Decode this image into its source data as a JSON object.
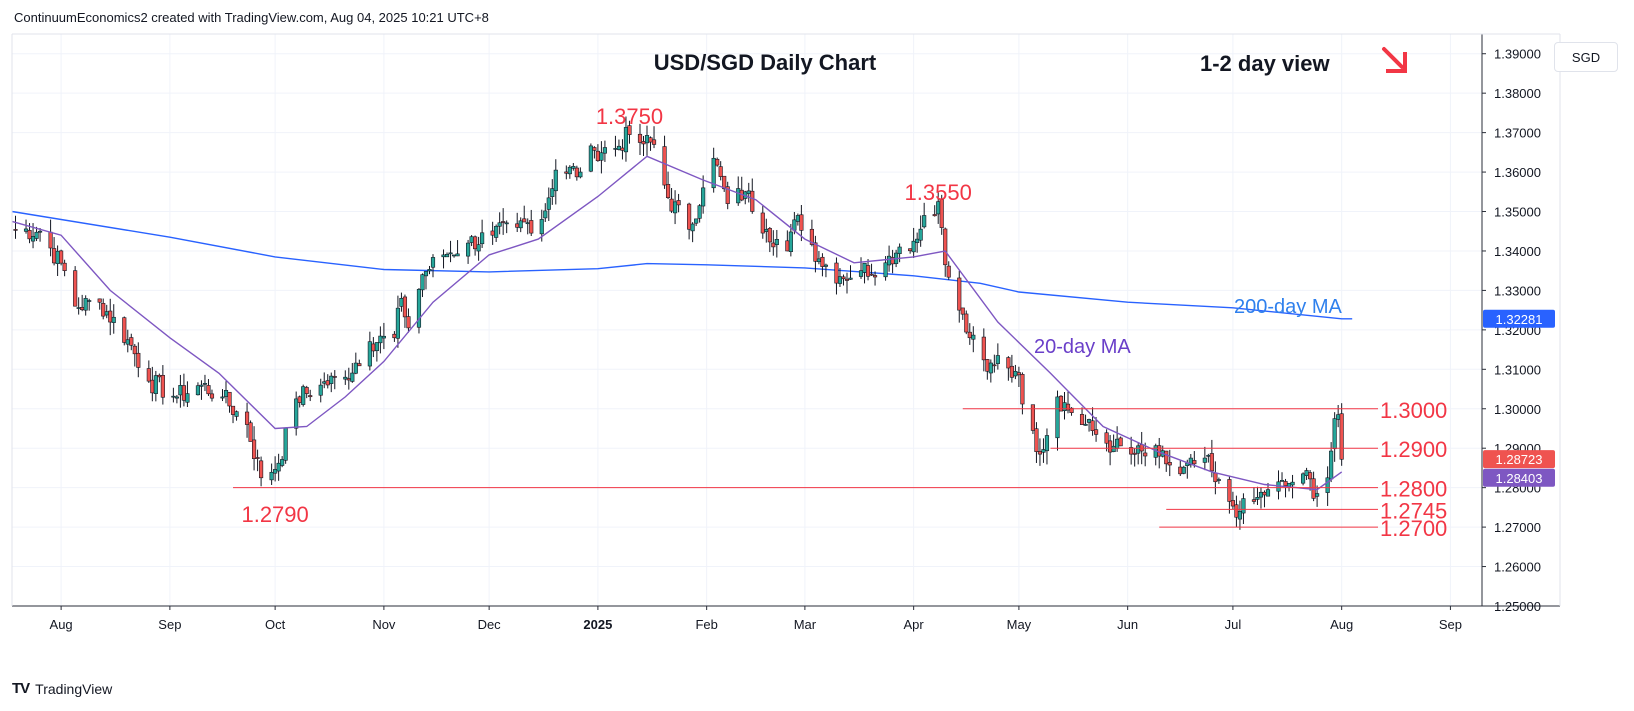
{
  "header": {
    "credit": "ContinuumEconomics2 created with TradingView.com, Aug 04, 2025 10:21 UTC+8"
  },
  "branding": {
    "logo_text": "TradingView",
    "logo_mark": "TV"
  },
  "currency_label": "SGD",
  "colors": {
    "up": "#26a69a",
    "down": "#ef5350",
    "ma20": "#7e57c2",
    "ma200": "#2962ff",
    "annotation": "#f23645",
    "ma200_label": "#2f80ed",
    "ma20_label": "#6a3fc9"
  },
  "chart_data": {
    "type": "candlestick",
    "title": "USD/SGD Daily Chart",
    "subtitle": "1-2 day view",
    "view_direction_icon": "arrow-down-right-icon",
    "ylim": [
      1.25,
      1.395
    ],
    "yticks": [
      1.25,
      1.26,
      1.27,
      1.28,
      1.29,
      1.3,
      1.31,
      1.32,
      1.33,
      1.34,
      1.35,
      1.36,
      1.37,
      1.38,
      1.39
    ],
    "ytick_labels": [
      "1.25000",
      "1.26000",
      "1.27000",
      "1.28000",
      "1.29000",
      "1.30000",
      "1.31000",
      "1.32000",
      "1.33000",
      "1.34000",
      "1.35000",
      "1.36000",
      "1.37000",
      "1.38000",
      "1.39000"
    ],
    "x_start": "2024-07-18",
    "x_end": "2025-09-10",
    "xticks": [
      {
        "date": "2024-08-01",
        "label": "Aug",
        "bold": false
      },
      {
        "date": "2024-09-01",
        "label": "Sep",
        "bold": false
      },
      {
        "date": "2024-10-01",
        "label": "Oct",
        "bold": false
      },
      {
        "date": "2024-11-01",
        "label": "Nov",
        "bold": false
      },
      {
        "date": "2024-12-01",
        "label": "Dec",
        "bold": false
      },
      {
        "date": "2025-01-01",
        "label": "2025",
        "bold": true
      },
      {
        "date": "2025-02-01",
        "label": "Feb",
        "bold": false
      },
      {
        "date": "2025-03-01",
        "label": "Mar",
        "bold": false
      },
      {
        "date": "2025-04-01",
        "label": "Apr",
        "bold": false
      },
      {
        "date": "2025-05-01",
        "label": "May",
        "bold": false
      },
      {
        "date": "2025-06-01",
        "label": "Jun",
        "bold": false
      },
      {
        "date": "2025-07-01",
        "label": "Jul",
        "bold": false
      },
      {
        "date": "2025-08-01",
        "label": "Aug",
        "bold": false
      },
      {
        "date": "2025-09-01",
        "label": "Sep",
        "bold": false
      }
    ],
    "price_anchors": [
      [
        "2024-07-18",
        1.3455
      ],
      [
        "2024-07-26",
        1.345
      ],
      [
        "2024-08-02",
        1.335
      ],
      [
        "2024-08-05",
        1.326
      ],
      [
        "2024-08-12",
        1.327
      ],
      [
        "2024-08-20",
        1.3175
      ],
      [
        "2024-08-26",
        1.307
      ],
      [
        "2024-09-03",
        1.303
      ],
      [
        "2024-09-10",
        1.306
      ],
      [
        "2024-09-16",
        1.303
      ],
      [
        "2024-09-23",
        1.296
      ],
      [
        "2024-09-27",
        1.2825
      ],
      [
        "2024-10-02",
        1.2862
      ],
      [
        "2024-10-07",
        1.3025
      ],
      [
        "2024-10-14",
        1.306
      ],
      [
        "2024-10-21",
        1.308
      ],
      [
        "2024-10-28",
        1.317
      ],
      [
        "2024-11-04",
        1.318
      ],
      [
        "2024-11-06",
        1.328
      ],
      [
        "2024-11-08",
        1.3205
      ],
      [
        "2024-11-12",
        1.334
      ],
      [
        "2024-11-18",
        1.339
      ],
      [
        "2024-11-25",
        1.342
      ],
      [
        "2024-12-02",
        1.344
      ],
      [
        "2024-12-09",
        1.346
      ],
      [
        "2024-12-16",
        1.348
      ],
      [
        "2024-12-20",
        1.3605
      ],
      [
        "2024-12-27",
        1.36
      ],
      [
        "2024-12-31",
        1.3655
      ],
      [
        "2025-01-06",
        1.366
      ],
      [
        "2025-01-10",
        1.3695
      ],
      [
        "2025-01-13",
        1.3675
      ],
      [
        "2025-01-17",
        1.367
      ],
      [
        "2025-01-21",
        1.3535
      ],
      [
        "2025-01-27",
        1.3455
      ],
      [
        "2025-01-31",
        1.356
      ],
      [
        "2025-02-03",
        1.3635
      ],
      [
        "2025-02-07",
        1.352
      ],
      [
        "2025-02-12",
        1.355
      ],
      [
        "2025-02-18",
        1.3455
      ],
      [
        "2025-02-24",
        1.34
      ],
      [
        "2025-02-27",
        1.349
      ],
      [
        "2025-03-05",
        1.338
      ],
      [
        "2025-03-11",
        1.3335
      ],
      [
        "2025-03-17",
        1.335
      ],
      [
        "2025-03-24",
        1.337
      ],
      [
        "2025-03-28",
        1.341
      ],
      [
        "2025-04-02",
        1.343
      ],
      [
        "2025-04-04",
        1.349
      ],
      [
        "2025-04-08",
        1.3525
      ],
      [
        "2025-04-10",
        1.3365
      ],
      [
        "2025-04-14",
        1.325
      ],
      [
        "2025-04-17",
        1.318
      ],
      [
        "2025-04-22",
        1.3095
      ],
      [
        "2025-04-25",
        1.3135
      ],
      [
        "2025-04-30",
        1.3095
      ],
      [
        "2025-05-05",
        1.2945
      ],
      [
        "2025-05-07",
        1.2885
      ],
      [
        "2025-05-12",
        1.303
      ],
      [
        "2025-05-16",
        1.299
      ],
      [
        "2025-05-23",
        1.2935
      ],
      [
        "2025-05-28",
        1.2905
      ],
      [
        "2025-06-02",
        1.2885
      ],
      [
        "2025-06-10",
        1.288
      ],
      [
        "2025-06-16",
        1.2835
      ],
      [
        "2025-06-23",
        1.2875
      ],
      [
        "2025-06-26",
        1.2815
      ],
      [
        "2025-06-30",
        1.2765
      ],
      [
        "2025-07-03",
        1.274
      ],
      [
        "2025-07-07",
        1.2765
      ],
      [
        "2025-07-11",
        1.2795
      ],
      [
        "2025-07-16",
        1.2805
      ],
      [
        "2025-07-21",
        1.2835
      ],
      [
        "2025-07-25",
        1.2785
      ],
      [
        "2025-07-28",
        1.2825
      ],
      [
        "2025-07-30",
        1.2975
      ],
      [
        "2025-07-31",
        1.2985
      ],
      [
        "2025-08-01",
        1.2872
      ]
    ],
    "series": [
      {
        "name": "200-day MA",
        "values": [
          [
            "2024-07-18",
            1.35
          ],
          [
            "2024-09-01",
            1.3435
          ],
          [
            "2024-10-01",
            1.3385
          ],
          [
            "2024-11-01",
            1.3353
          ],
          [
            "2024-12-01",
            1.3347
          ],
          [
            "2025-01-01",
            1.3355
          ],
          [
            "2025-01-15",
            1.3368
          ],
          [
            "2025-02-01",
            1.3365
          ],
          [
            "2025-03-01",
            1.3357
          ],
          [
            "2025-03-20",
            1.3345
          ],
          [
            "2025-04-01",
            1.3337
          ],
          [
            "2025-04-20",
            1.3318
          ],
          [
            "2025-05-01",
            1.3296
          ],
          [
            "2025-06-01",
            1.327
          ],
          [
            "2025-07-01",
            1.3256
          ],
          [
            "2025-08-01",
            1.3228
          ],
          [
            "2025-08-04",
            1.3228
          ]
        ]
      },
      {
        "name": "20-day MA",
        "values": [
          [
            "2024-07-18",
            1.3475
          ],
          [
            "2024-08-01",
            1.344
          ],
          [
            "2024-08-15",
            1.33
          ],
          [
            "2024-09-01",
            1.318
          ],
          [
            "2024-09-15",
            1.309
          ],
          [
            "2024-10-01",
            1.295
          ],
          [
            "2024-10-10",
            1.2955
          ],
          [
            "2024-10-21",
            1.303
          ],
          [
            "2024-11-01",
            1.312
          ],
          [
            "2024-11-15",
            1.327
          ],
          [
            "2024-12-01",
            1.339
          ],
          [
            "2024-12-15",
            1.343
          ],
          [
            "2025-01-01",
            1.3538
          ],
          [
            "2025-01-15",
            1.364
          ],
          [
            "2025-01-31",
            1.358
          ],
          [
            "2025-02-15",
            1.353
          ],
          [
            "2025-03-01",
            1.343
          ],
          [
            "2025-03-15",
            1.337
          ],
          [
            "2025-04-01",
            1.3385
          ],
          [
            "2025-04-10",
            1.34
          ],
          [
            "2025-04-25",
            1.322
          ],
          [
            "2025-05-10",
            1.309
          ],
          [
            "2025-05-25",
            1.2955
          ],
          [
            "2025-06-10",
            1.289
          ],
          [
            "2025-06-25",
            1.284
          ],
          [
            "2025-07-10",
            1.2808
          ],
          [
            "2025-07-25",
            1.2795
          ],
          [
            "2025-08-01",
            1.284
          ]
        ]
      }
    ],
    "reference_levels": [
      {
        "label": "1.3000",
        "value": 1.3,
        "x_from": "2025-04-15"
      },
      {
        "label": "1.2900",
        "value": 1.29,
        "x_from": "2025-05-10"
      },
      {
        "label": "1.2800",
        "value": 1.28,
        "x_from": "2024-09-19"
      },
      {
        "label": "1.2745",
        "value": 1.2745,
        "x_from": "2025-06-12"
      },
      {
        "label": "1.2700",
        "value": 1.27,
        "x_from": "2025-06-10"
      }
    ],
    "peak_annotations": [
      {
        "label": "1.3750",
        "date": "2025-01-10"
      },
      {
        "label": "1.3550",
        "date": "2025-04-08"
      },
      {
        "label": "1.2790",
        "date": "2024-10-01"
      }
    ],
    "ma_labels": [
      {
        "label": "200-day MA",
        "date": "2025-07-01",
        "value": 1.331
      },
      {
        "label": "20-day MA",
        "date": "2025-05-23",
        "value": 1.318
      }
    ],
    "price_badges": [
      {
        "label": "1.32281",
        "value": 1.32281,
        "color": "#2962ff"
      },
      {
        "label": "1.28723",
        "value": 1.28723,
        "color": "#ef5350"
      },
      {
        "label": "1.28403",
        "value": 1.28403,
        "color": "#7e57c2"
      }
    ]
  }
}
